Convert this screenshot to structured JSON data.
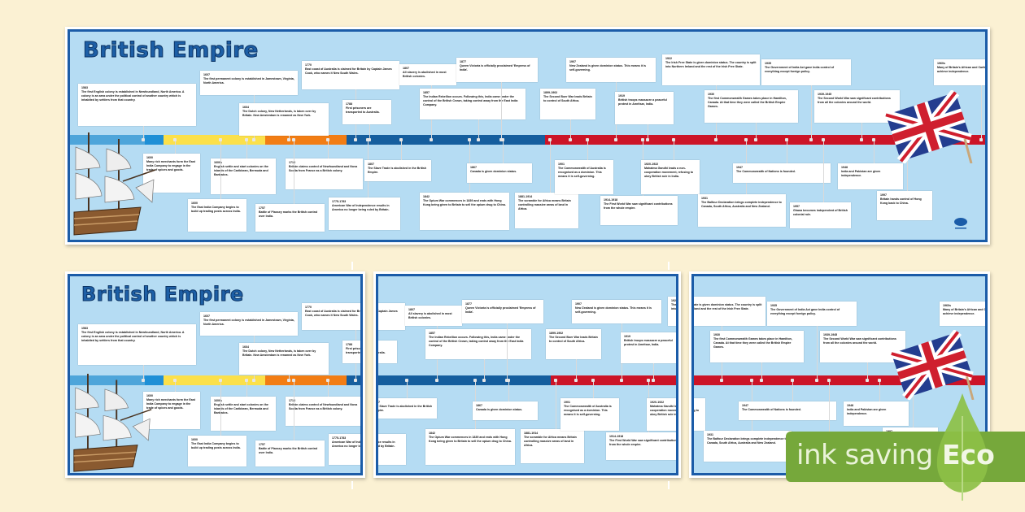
{
  "poster": {
    "title": "British Empire",
    "colors": {
      "background": "#fbf1d3",
      "frame": "#1b5ca8",
      "panel": "#b5dcf3",
      "title": "#1d5fa6",
      "seg_lightblue": "#4ea5da",
      "seg_blue": "#1e8fd6",
      "seg_yellow": "#fbe04a",
      "seg_orange": "#f27d14",
      "seg_darkblue": "#155e9e",
      "seg_red": "#cc1427"
    },
    "events_top": [
      {
        "year": "1583",
        "text": "The first English colony is established in Newfoundland, North America. A colony is an area under the political control of another country which is inhabited by settlers from that country."
      },
      {
        "year": "1607",
        "text": "The first permanent colony is established in Jamestown, Virginia, North America."
      },
      {
        "year": "1664",
        "text": "The Dutch colony, New Netherlands, is taken over by Britain. New Amsterdam is renamed as New York."
      },
      {
        "year": "1770",
        "text": "East coast of Australia is claimed for Britain by Captain James Cook, who names it New South Wales."
      },
      {
        "year": "1788",
        "text": "First prisoners are transported to Australia."
      },
      {
        "year": "1807",
        "text": "All slavery is abolished in most British colonies."
      },
      {
        "year": "1857",
        "text": "The Indian Rebellion occurs. Following this, India came under the control of the British Crown, taking control away from the East India Company."
      },
      {
        "year": "1877",
        "text": "Queen Victoria is officially proclaimed 'Empress of India'."
      },
      {
        "year": "1899-1902",
        "text": "The Second Boer War leads Britain to control of South Africa."
      },
      {
        "year": "1907",
        "text": "New Zealand is given dominion status. This means it is self-governing."
      },
      {
        "year": "1919",
        "text": "British troops massacre a peaceful protest in Amritsar, India."
      },
      {
        "year": "1922",
        "text": "The Irish Free State is given dominion status. The country is split into Northern Ireland and the rest of the Irish Free State."
      },
      {
        "year": "1930",
        "text": "The first Commonwealth Games takes place in Hamilton, Canada. At that time they were called the British Empire Games."
      },
      {
        "year": "1935",
        "text": "The Government of India Act gave India control of everything except foreign policy."
      },
      {
        "year": "1939-1945",
        "text": "The Second World War saw significant contributions from all the colonies around the world."
      },
      {
        "year": "1960s",
        "text": "Many of Britain's African and Caribbean colonies achieve independence."
      }
    ],
    "events_bottom": [
      {
        "year": "1600",
        "text": "Many rich merchants form the East India Company to engage in the trade of spices and goods."
      },
      {
        "year": "1600s",
        "text": "English settle and start colonies on the islands of the Caribbean, Bermuda and Barbados."
      },
      {
        "year": "1713",
        "text": "Britain claims control of Newfoundland and Nova Scotia from France as a British colony."
      },
      {
        "year": "1600",
        "text": "The East India Company begins to build up trading posts across India."
      },
      {
        "year": "1757",
        "text": "Battle of Plassey marks the British control over India."
      },
      {
        "year": "1775-1783",
        "text": "American War of Independence results in America no longer being ruled by Britain."
      },
      {
        "year": "1807",
        "text": "The Slave Trade is abolished in the British Empire."
      },
      {
        "year": "1842",
        "text": "The Opium War commences in 1839 and ends with Hong Kong being given to Britain to sell the opium drug to China."
      },
      {
        "year": "1867",
        "text": "Canada is given dominion status."
      },
      {
        "year": "1881-1914",
        "text": "The scramble for Africa means Britain controlling massive areas of land in Africa."
      },
      {
        "year": "1901",
        "text": "The Commonwealth of Australia is recognised as a dominion. This means it is self-governing."
      },
      {
        "year": "1914-1918",
        "text": "The First World War saw significant contributions from the whole empire."
      },
      {
        "year": "1920-1922",
        "text": "Mahatma Gandhi leads a non-cooperation movement, refusing to obey British rule in India."
      },
      {
        "year": "1931",
        "text": "The Balfour Declaration brings complete independence to Canada, South Africa, Australia and New Zealand."
      },
      {
        "year": "1947",
        "text": "The Commonwealth of Nations is founded."
      },
      {
        "year": "1957",
        "text": "Ghana becomes independent of British colonial rule."
      },
      {
        "year": "1948",
        "text": "India and Pakistan are given independence."
      },
      {
        "year": "1997",
        "text": "Britain hands control of Hong Kong back to China."
      }
    ]
  },
  "badge": {
    "label": "ink saving",
    "eco": "Eco",
    "color": "#76a83b"
  }
}
